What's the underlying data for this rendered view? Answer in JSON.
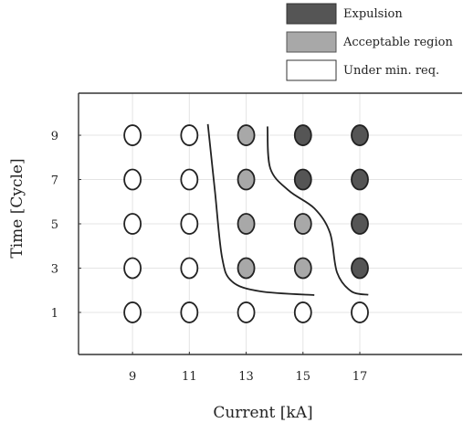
{
  "chart_data": {
    "type": "scatter",
    "xlabel": "Current [kA]",
    "ylabel": "Time [Cycle]",
    "x_ticks": [
      9,
      11,
      13,
      15,
      17
    ],
    "y_ticks": [
      1,
      3,
      5,
      7,
      9
    ],
    "xlim": [
      7.1,
      20.6
    ],
    "ylim": [
      -0.9,
      10.9
    ],
    "grid": true,
    "legend_position": "top-right",
    "categories": [
      {
        "key": "expulsion",
        "label": "Expulsion",
        "color": "#555555"
      },
      {
        "key": "acceptable",
        "label": "Acceptable region",
        "color": "#a8a8a8"
      },
      {
        "key": "under",
        "label": "Under min. req.",
        "color": "#ffffff"
      }
    ],
    "points": [
      {
        "x": 9,
        "y": 1,
        "cat": "under"
      },
      {
        "x": 9,
        "y": 3,
        "cat": "under"
      },
      {
        "x": 9,
        "y": 5,
        "cat": "under"
      },
      {
        "x": 9,
        "y": 7,
        "cat": "under"
      },
      {
        "x": 9,
        "y": 9,
        "cat": "under"
      },
      {
        "x": 11,
        "y": 1,
        "cat": "under"
      },
      {
        "x": 11,
        "y": 3,
        "cat": "under"
      },
      {
        "x": 11,
        "y": 5,
        "cat": "under"
      },
      {
        "x": 11,
        "y": 7,
        "cat": "under"
      },
      {
        "x": 11,
        "y": 9,
        "cat": "under"
      },
      {
        "x": 13,
        "y": 1,
        "cat": "under"
      },
      {
        "x": 13,
        "y": 3,
        "cat": "acceptable"
      },
      {
        "x": 13,
        "y": 5,
        "cat": "acceptable"
      },
      {
        "x": 13,
        "y": 7,
        "cat": "acceptable"
      },
      {
        "x": 13,
        "y": 9,
        "cat": "acceptable"
      },
      {
        "x": 15,
        "y": 1,
        "cat": "under"
      },
      {
        "x": 15,
        "y": 3,
        "cat": "acceptable"
      },
      {
        "x": 15,
        "y": 5,
        "cat": "acceptable"
      },
      {
        "x": 15,
        "y": 7,
        "cat": "expulsion"
      },
      {
        "x": 15,
        "y": 9,
        "cat": "expulsion"
      },
      {
        "x": 17,
        "y": 1,
        "cat": "under"
      },
      {
        "x": 17,
        "y": 3,
        "cat": "expulsion"
      },
      {
        "x": 17,
        "y": 5,
        "cat": "expulsion"
      },
      {
        "x": 17,
        "y": 7,
        "cat": "expulsion"
      },
      {
        "x": 17,
        "y": 9,
        "cat": "expulsion"
      }
    ],
    "boundary_lines": [
      {
        "name": "min-requirement-boundary",
        "points": [
          [
            11.65,
            9.5
          ],
          [
            11.9,
            6.5
          ],
          [
            12.15,
            3.5
          ],
          [
            12.5,
            2.4
          ],
          [
            13.5,
            1.95
          ],
          [
            15.4,
            1.78
          ]
        ]
      },
      {
        "name": "expulsion-boundary",
        "points": [
          [
            13.75,
            9.4
          ],
          [
            13.85,
            7.5
          ],
          [
            14.5,
            6.5
          ],
          [
            15.4,
            5.7
          ],
          [
            15.95,
            4.6
          ],
          [
            16.2,
            2.8
          ],
          [
            16.7,
            1.95
          ],
          [
            17.3,
            1.8
          ]
        ]
      }
    ]
  }
}
